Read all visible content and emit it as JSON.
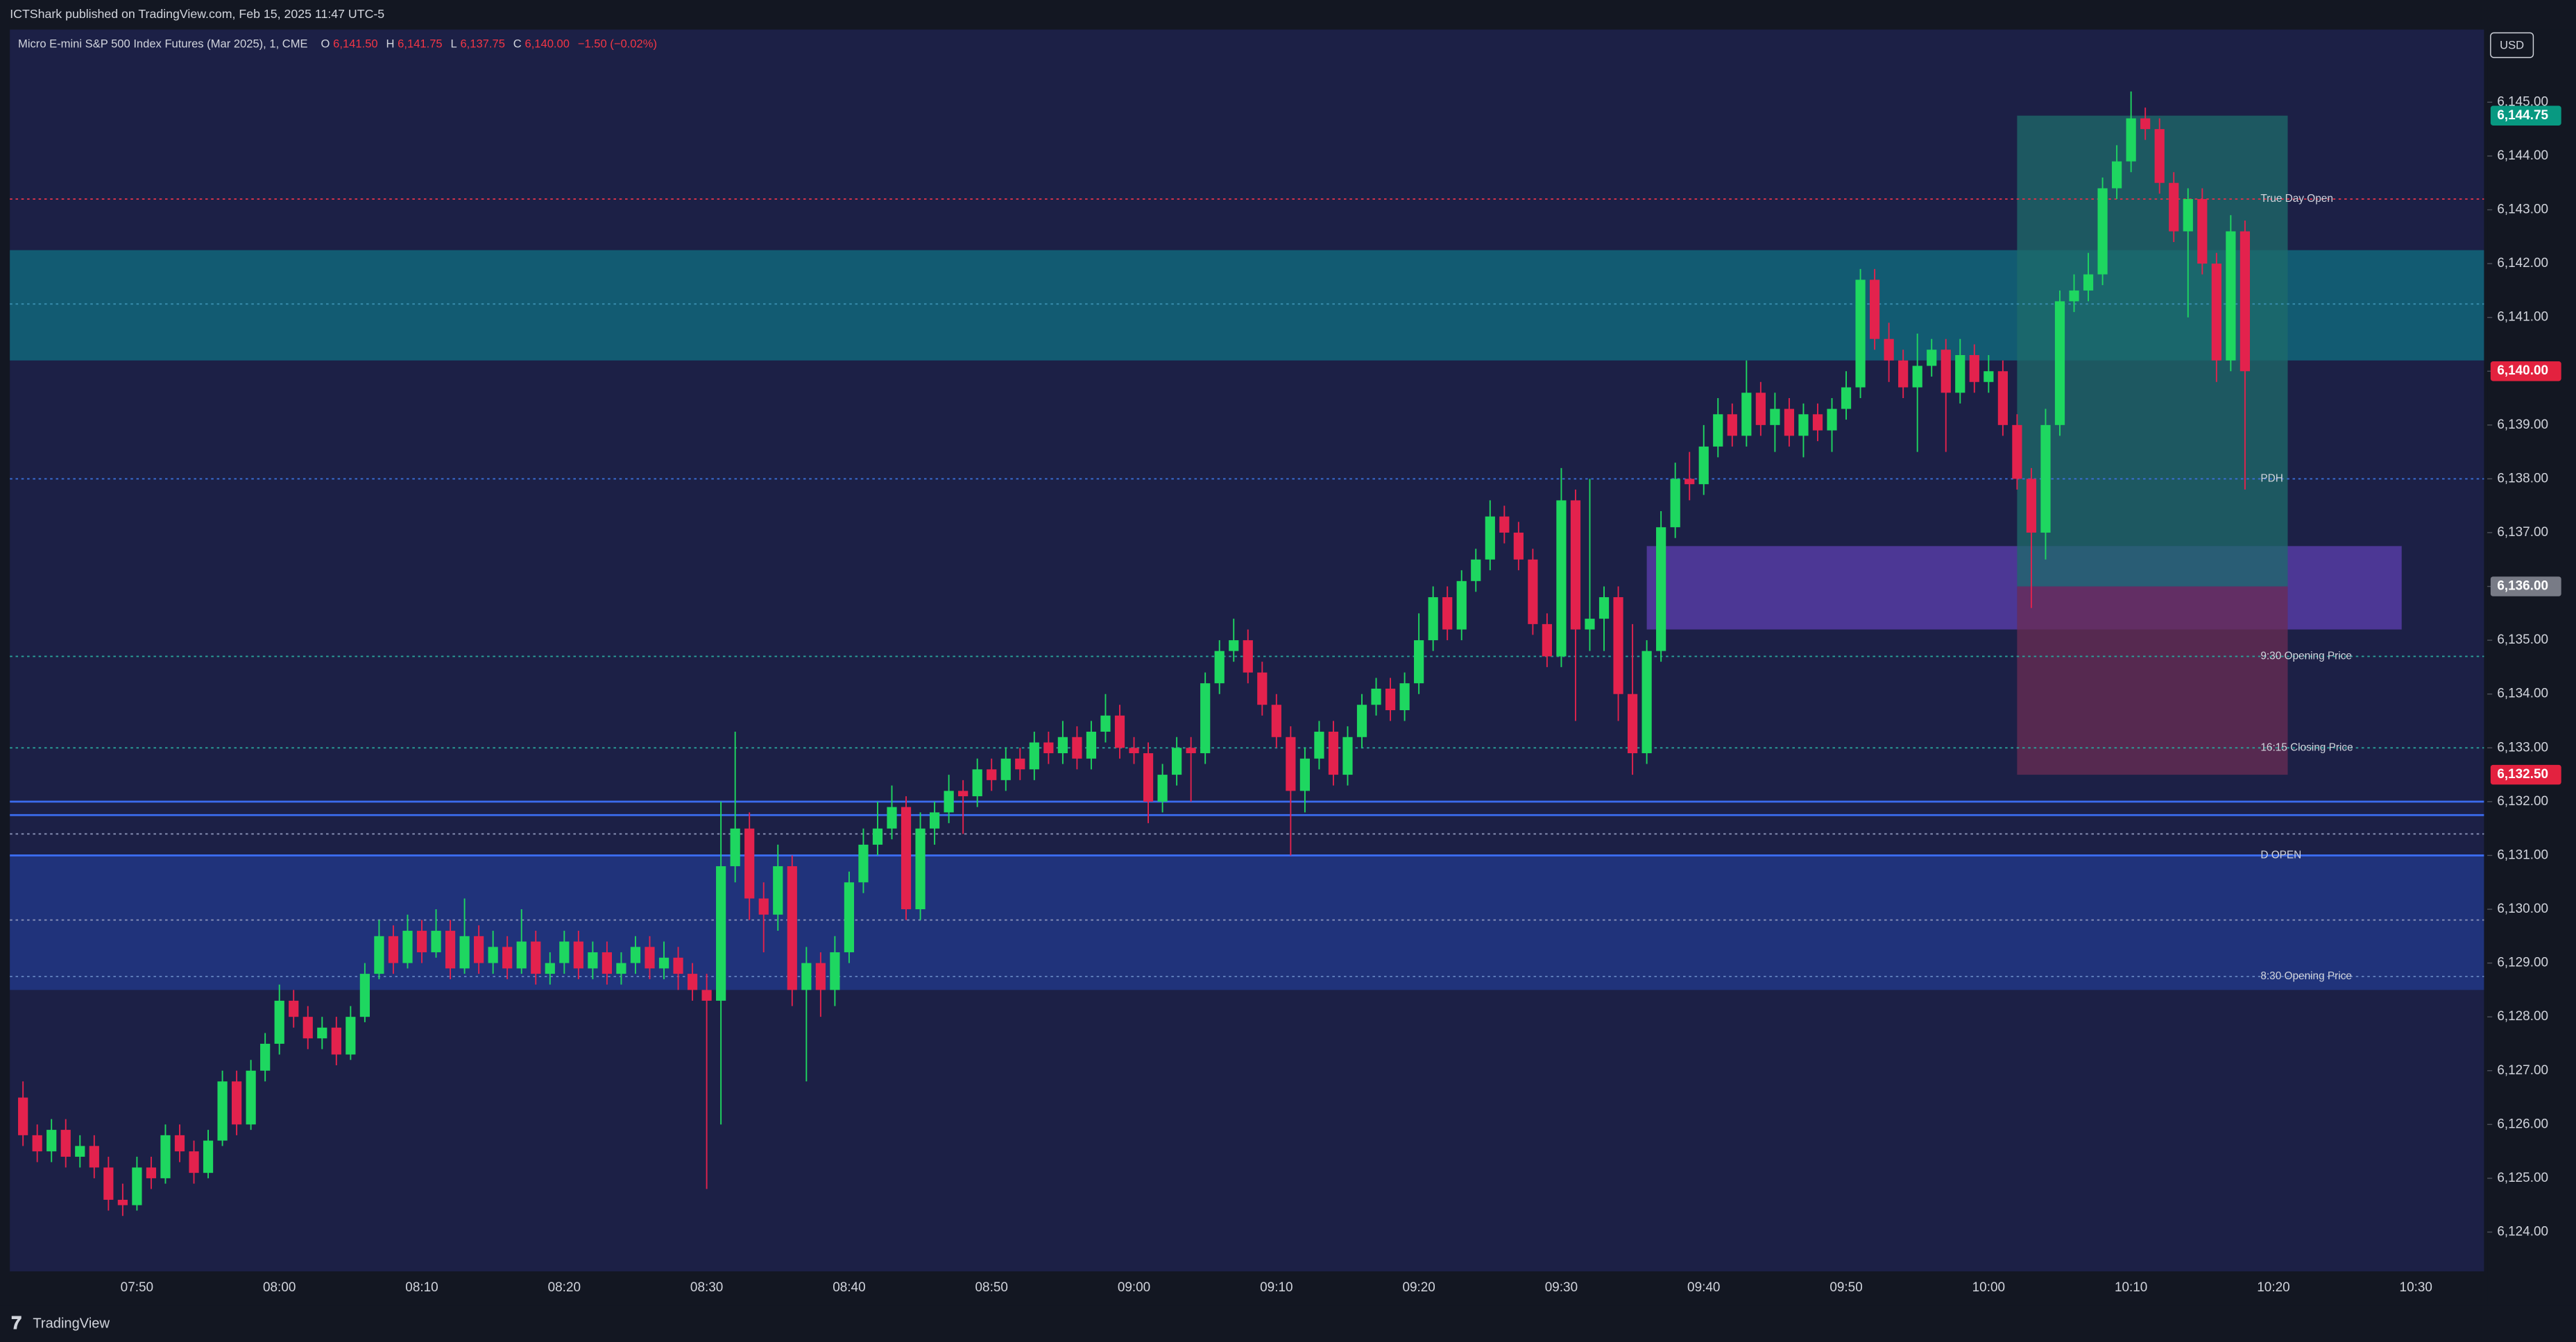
{
  "header": {
    "published": "ICTShark published on TradingView.com, Feb 15, 2025 11:47 UTC-5",
    "symbol": "Micro E-mini S&P 500 Index Futures (Mar 2025), 1, CME",
    "ohlc": [
      {
        "label": "O",
        "value": "6,141.50"
      },
      {
        "label": "H",
        "value": "6,141.75"
      },
      {
        "label": "L",
        "value": "6,137.75"
      },
      {
        "label": "C",
        "value": "6,140.00"
      }
    ],
    "change": "−1.50 (−0.02%)"
  },
  "currency": "USD",
  "brand": "TradingView",
  "chart_data": {
    "type": "candlestick",
    "up_color": "#1ed760",
    "down_color": "#e3224d",
    "categories": [
      null,
      null,
      null,
      null,
      null,
      null,
      null,
      null,
      "07:50",
      null,
      null,
      null,
      null,
      null,
      null,
      null,
      null,
      null,
      "08:00",
      null,
      null,
      null,
      null,
      null,
      null,
      null,
      null,
      null,
      "08:10",
      null,
      null,
      null,
      null,
      null,
      null,
      null,
      null,
      null,
      "08:20",
      null,
      null,
      null,
      null,
      null,
      null,
      null,
      null,
      null,
      "08:30",
      null,
      null,
      null,
      null,
      null,
      null,
      null,
      null,
      null,
      "08:40",
      null,
      null,
      null,
      null,
      null,
      null,
      null,
      null,
      null,
      "08:50",
      null,
      null,
      null,
      null,
      null,
      null,
      null,
      null,
      null,
      "09:00",
      null,
      null,
      null,
      null,
      null,
      null,
      null,
      null,
      null,
      "09:10",
      null,
      null,
      null,
      null,
      null,
      null,
      null,
      null,
      null,
      "09:20",
      null,
      null,
      null,
      null,
      null,
      null,
      null,
      null,
      null,
      "09:30",
      null,
      null,
      null,
      null,
      null,
      null,
      null,
      null,
      null,
      "09:40",
      null,
      null,
      null,
      null,
      null,
      null,
      null,
      null,
      null,
      "09:50",
      null,
      null,
      null,
      null,
      null,
      null,
      null,
      null,
      null,
      "10:00",
      null,
      null,
      null,
      null,
      null,
      null,
      null,
      null,
      null,
      "10:10",
      null,
      null,
      null,
      null,
      null,
      null,
      null,
      null,
      null,
      "10:20",
      null,
      null,
      null,
      null,
      null,
      null,
      null,
      null,
      null,
      "10:30"
    ],
    "candles": [
      [
        6126.5,
        6126.8,
        6125.6,
        6125.8
      ],
      [
        6125.8,
        6126.0,
        6125.3,
        6125.5
      ],
      [
        6125.5,
        6126.1,
        6125.3,
        6125.9
      ],
      [
        6125.9,
        6126.1,
        6125.2,
        6125.4
      ],
      [
        6125.4,
        6125.8,
        6125.2,
        6125.6
      ],
      [
        6125.6,
        6125.8,
        6125.0,
        6125.2
      ],
      [
        6125.2,
        6125.4,
        6124.4,
        6124.6
      ],
      [
        6124.6,
        6124.9,
        6124.3,
        6124.5
      ],
      [
        6124.5,
        6125.4,
        6124.4,
        6125.2
      ],
      [
        6125.2,
        6125.4,
        6124.8,
        6125.0
      ],
      [
        6125.0,
        6126.0,
        6124.9,
        6125.8
      ],
      [
        6125.8,
        6126.0,
        6125.3,
        6125.5
      ],
      [
        6125.5,
        6125.7,
        6124.9,
        6125.1
      ],
      [
        6125.1,
        6125.9,
        6125.0,
        6125.7
      ],
      [
        6125.7,
        6127.0,
        6125.6,
        6126.8
      ],
      [
        6126.8,
        6127.0,
        6125.8,
        6126.0
      ],
      [
        6126.0,
        6127.2,
        6125.9,
        6127.0
      ],
      [
        6127.0,
        6127.7,
        6126.8,
        6127.5
      ],
      [
        6127.5,
        6128.6,
        6127.3,
        6128.3
      ],
      [
        6128.3,
        6128.5,
        6127.8,
        6128.0
      ],
      [
        6128.0,
        6128.2,
        6127.4,
        6127.6
      ],
      [
        6127.6,
        6128.0,
        6127.4,
        6127.8
      ],
      [
        6127.8,
        6128.0,
        6127.1,
        6127.3
      ],
      [
        6127.3,
        6128.2,
        6127.2,
        6128.0
      ],
      [
        6128.0,
        6129.0,
        6127.9,
        6128.8
      ],
      [
        6128.8,
        6129.8,
        6128.7,
        6129.5
      ],
      [
        6129.5,
        6129.7,
        6128.8,
        6129.0
      ],
      [
        6129.0,
        6129.9,
        6128.9,
        6129.6
      ],
      [
        6129.6,
        6129.8,
        6129.0,
        6129.2
      ],
      [
        6129.2,
        6130.0,
        6129.1,
        6129.6
      ],
      [
        6129.6,
        6129.8,
        6128.7,
        6128.9
      ],
      [
        6128.9,
        6130.2,
        6128.8,
        6129.5
      ],
      [
        6129.5,
        6129.7,
        6128.8,
        6129.0
      ],
      [
        6129.0,
        6129.6,
        6128.8,
        6129.3
      ],
      [
        6129.3,
        6129.5,
        6128.7,
        6128.9
      ],
      [
        6128.9,
        6130.0,
        6128.8,
        6129.4
      ],
      [
        6129.4,
        6129.6,
        6128.6,
        6128.8
      ],
      [
        6128.8,
        6129.2,
        6128.6,
        6129.0
      ],
      [
        6129.0,
        6129.6,
        6128.8,
        6129.4
      ],
      [
        6129.4,
        6129.6,
        6128.7,
        6128.9
      ],
      [
        6128.9,
        6129.4,
        6128.7,
        6129.2
      ],
      [
        6129.2,
        6129.4,
        6128.6,
        6128.8
      ],
      [
        6128.8,
        6129.2,
        6128.6,
        6129.0
      ],
      [
        6129.0,
        6129.5,
        6128.8,
        6129.3
      ],
      [
        6129.3,
        6129.5,
        6128.7,
        6128.9
      ],
      [
        6128.9,
        6129.4,
        6128.7,
        6129.1
      ],
      [
        6129.1,
        6129.3,
        6128.5,
        6128.8
      ],
      [
        6128.8,
        6129.0,
        6128.3,
        6128.5
      ],
      [
        6128.5,
        6128.8,
        6124.8,
        6128.3
      ],
      [
        6128.3,
        6132.0,
        6126.0,
        6130.8
      ],
      [
        6130.8,
        6133.3,
        6130.5,
        6131.5
      ],
      [
        6131.5,
        6131.8,
        6129.8,
        6130.2
      ],
      [
        6130.2,
        6130.5,
        6129.2,
        6129.9
      ],
      [
        6129.9,
        6131.2,
        6129.6,
        6130.8
      ],
      [
        6130.8,
        6131.0,
        6128.2,
        6128.5
      ],
      [
        6128.5,
        6129.3,
        6126.8,
        6129.0
      ],
      [
        6129.0,
        6129.2,
        6128.0,
        6128.5
      ],
      [
        6128.5,
        6129.5,
        6128.2,
        6129.2
      ],
      [
        6129.2,
        6130.7,
        6129.0,
        6130.5
      ],
      [
        6130.5,
        6131.5,
        6130.3,
        6131.2
      ],
      [
        6131.2,
        6132.0,
        6131.0,
        6131.5
      ],
      [
        6131.5,
        6132.3,
        6131.3,
        6131.9
      ],
      [
        6131.9,
        6132.1,
        6129.8,
        6130.0
      ],
      [
        6130.0,
        6131.8,
        6129.8,
        6131.5
      ],
      [
        6131.5,
        6132.0,
        6131.2,
        6131.8
      ],
      [
        6131.8,
        6132.5,
        6131.6,
        6132.2
      ],
      [
        6132.2,
        6132.4,
        6131.4,
        6132.1
      ],
      [
        6132.1,
        6132.8,
        6131.9,
        6132.6
      ],
      [
        6132.6,
        6132.8,
        6132.2,
        6132.4
      ],
      [
        6132.4,
        6133.0,
        6132.2,
        6132.8
      ],
      [
        6132.8,
        6133.0,
        6132.4,
        6132.6
      ],
      [
        6132.6,
        6133.3,
        6132.4,
        6133.1
      ],
      [
        6133.1,
        6133.3,
        6132.7,
        6132.9
      ],
      [
        6132.9,
        6133.5,
        6132.7,
        6133.2
      ],
      [
        6133.2,
        6133.4,
        6132.6,
        6132.8
      ],
      [
        6132.8,
        6133.5,
        6132.6,
        6133.3
      ],
      [
        6133.3,
        6134.0,
        6133.1,
        6133.6
      ],
      [
        6133.6,
        6133.8,
        6132.8,
        6133.0
      ],
      [
        6133.0,
        6133.2,
        6132.7,
        6132.9
      ],
      [
        6132.9,
        6133.1,
        6131.6,
        6132.0
      ],
      [
        6132.0,
        6132.7,
        6131.8,
        6132.5
      ],
      [
        6132.5,
        6133.2,
        6132.3,
        6133.0
      ],
      [
        6133.0,
        6133.2,
        6132.0,
        6132.9
      ],
      [
        6132.9,
        6134.4,
        6132.7,
        6134.2
      ],
      [
        6134.2,
        6135.0,
        6134.0,
        6134.8
      ],
      [
        6134.8,
        6135.4,
        6134.6,
        6135.0
      ],
      [
        6135.0,
        6135.2,
        6134.2,
        6134.4
      ],
      [
        6134.4,
        6134.6,
        6133.6,
        6133.8
      ],
      [
        6133.8,
        6134.0,
        6133.0,
        6133.2
      ],
      [
        6133.2,
        6133.4,
        6131.0,
        6132.2
      ],
      [
        6132.2,
        6133.0,
        6131.8,
        6132.8
      ],
      [
        6132.8,
        6133.5,
        6132.6,
        6133.3
      ],
      [
        6133.3,
        6133.5,
        6132.3,
        6132.5
      ],
      [
        6132.5,
        6133.4,
        6132.3,
        6133.2
      ],
      [
        6133.2,
        6134.0,
        6133.0,
        6133.8
      ],
      [
        6133.8,
        6134.3,
        6133.6,
        6134.1
      ],
      [
        6134.1,
        6134.3,
        6133.5,
        6133.7
      ],
      [
        6133.7,
        6134.4,
        6133.5,
        6134.2
      ],
      [
        6134.2,
        6135.5,
        6134.0,
        6135.0
      ],
      [
        6135.0,
        6136.0,
        6134.8,
        6135.8
      ],
      [
        6135.8,
        6136.0,
        6135.0,
        6135.2
      ],
      [
        6135.2,
        6136.3,
        6135.0,
        6136.1
      ],
      [
        6136.1,
        6136.7,
        6135.9,
        6136.5
      ],
      [
        6136.5,
        6137.6,
        6136.3,
        6137.3
      ],
      [
        6137.3,
        6137.5,
        6136.8,
        6137.0
      ],
      [
        6137.0,
        6137.2,
        6136.3,
        6136.5
      ],
      [
        6136.5,
        6136.7,
        6135.1,
        6135.3
      ],
      [
        6135.3,
        6135.5,
        6134.5,
        6134.7
      ],
      [
        6134.7,
        6138.2,
        6134.5,
        6137.6
      ],
      [
        6137.6,
        6137.8,
        6133.5,
        6135.2
      ],
      [
        6135.2,
        6138.0,
        6134.8,
        6135.4
      ],
      [
        6135.4,
        6136.0,
        6134.8,
        6135.8
      ],
      [
        6135.8,
        6136.0,
        6133.5,
        6134.0
      ],
      [
        6134.0,
        6135.3,
        6132.5,
        6132.9
      ],
      [
        6132.9,
        6135.0,
        6132.7,
        6134.8
      ],
      [
        6134.8,
        6137.4,
        6134.6,
        6137.1
      ],
      [
        6137.1,
        6138.3,
        6136.9,
        6138.0
      ],
      [
        6138.0,
        6138.5,
        6137.6,
        6137.9
      ],
      [
        6137.9,
        6139.0,
        6137.7,
        6138.6
      ],
      [
        6138.6,
        6139.5,
        6138.4,
        6139.2
      ],
      [
        6139.2,
        6139.4,
        6138.6,
        6138.8
      ],
      [
        6138.8,
        6140.2,
        6138.6,
        6139.6
      ],
      [
        6139.6,
        6139.8,
        6138.8,
        6139.0
      ],
      [
        6139.0,
        6139.6,
        6138.5,
        6139.3
      ],
      [
        6139.3,
        6139.5,
        6138.6,
        6138.8
      ],
      [
        6138.8,
        6139.4,
        6138.4,
        6139.2
      ],
      [
        6139.2,
        6139.4,
        6138.7,
        6138.9
      ],
      [
        6138.9,
        6139.5,
        6138.5,
        6139.3
      ],
      [
        6139.3,
        6140.0,
        6139.1,
        6139.7
      ],
      [
        6139.7,
        6141.9,
        6139.5,
        6141.7
      ],
      [
        6141.7,
        6141.9,
        6140.4,
        6140.6
      ],
      [
        6140.6,
        6140.9,
        6139.8,
        6140.2
      ],
      [
        6140.2,
        6140.4,
        6139.5,
        6139.7
      ],
      [
        6139.7,
        6140.7,
        6138.5,
        6140.1
      ],
      [
        6140.1,
        6140.6,
        6139.9,
        6140.4
      ],
      [
        6140.4,
        6140.6,
        6138.5,
        6139.6
      ],
      [
        6139.6,
        6140.6,
        6139.4,
        6140.3
      ],
      [
        6140.3,
        6140.5,
        6139.6,
        6139.8
      ],
      [
        6139.8,
        6140.3,
        6139.6,
        6140.0
      ],
      [
        6140.0,
        6140.2,
        6138.8,
        6139.0
      ],
      [
        6139.0,
        6139.2,
        6137.8,
        6138.0
      ],
      [
        6138.0,
        6138.2,
        6135.6,
        6137.0
      ],
      [
        6137.0,
        6139.3,
        6136.5,
        6139.0
      ],
      [
        6139.0,
        6141.5,
        6138.8,
        6141.3
      ],
      [
        6141.3,
        6141.8,
        6141.1,
        6141.5
      ],
      [
        6141.5,
        6142.2,
        6141.3,
        6141.8
      ],
      [
        6141.8,
        6143.6,
        6141.6,
        6143.4
      ],
      [
        6143.4,
        6144.2,
        6143.2,
        6143.9
      ],
      [
        6143.9,
        6145.2,
        6143.7,
        6144.7
      ],
      [
        6144.7,
        6144.9,
        6144.3,
        6144.5
      ],
      [
        6144.5,
        6144.7,
        6143.3,
        6143.5
      ],
      [
        6143.5,
        6143.7,
        6142.4,
        6142.6
      ],
      [
        6142.6,
        6143.4,
        6141.0,
        6143.2
      ],
      [
        6143.2,
        6143.4,
        6141.8,
        6142.0
      ],
      [
        6142.0,
        6142.2,
        6139.8,
        6140.2
      ],
      [
        6140.2,
        6142.9,
        6140.0,
        6142.6
      ],
      [
        6142.6,
        6142.8,
        6137.8,
        6140.0
      ],
      null,
      null,
      null,
      null,
      null,
      null,
      null,
      null,
      null,
      null,
      null,
      null
    ],
    "ylim": [
      6123.3,
      6146.35
    ],
    "yticks": [
      {
        "value": 6124,
        "label": "6,124.00"
      },
      {
        "value": 6125,
        "label": "6,125.00"
      },
      {
        "value": 6126,
        "label": "6,126.00"
      },
      {
        "value": 6127,
        "label": "6,127.00"
      },
      {
        "value": 6128,
        "label": "6,128.00"
      },
      {
        "value": 6129,
        "label": "6,129.00"
      },
      {
        "value": 6130,
        "label": "6,130.00"
      },
      {
        "value": 6131,
        "label": "6,131.00"
      },
      {
        "value": 6132,
        "label": "6,132.00"
      },
      {
        "value": 6133,
        "label": "6,133.00"
      },
      {
        "value": 6134,
        "label": "6,134.00"
      },
      {
        "value": 6135,
        "label": "6,135.00"
      },
      {
        "value": 6136,
        "label": "6,136.00"
      },
      {
        "value": 6137,
        "label": "6,137.00"
      },
      {
        "value": 6138,
        "label": "6,138.00"
      },
      {
        "value": 6139,
        "label": "6,139.00"
      },
      {
        "value": 6140,
        "label": "6,140.00"
      },
      {
        "value": 6141,
        "label": "6,141.00"
      },
      {
        "value": 6142,
        "label": "6,142.00"
      },
      {
        "value": 6143,
        "label": "6,143.00"
      },
      {
        "value": 6144,
        "label": "6,144.00"
      },
      {
        "value": 6145,
        "label": "6,145.00"
      }
    ],
    "zones": [
      {
        "range": [
          6140.2,
          6142.25
        ],
        "color": "#0f6f82"
      },
      {
        "range": [
          6128.5,
          6131.0
        ],
        "color": "#213a8e"
      },
      {
        "range": [
          6135.2,
          6136.75
        ],
        "x": [
          "09:36",
          "10:29"
        ],
        "color": "#5c3fb0"
      },
      {
        "range": [
          6136.0,
          6144.75
        ],
        "x": [
          "10:02",
          "10:21"
        ],
        "color": "#1d6b6b"
      },
      {
        "range": [
          6132.5,
          6136.0
        ],
        "x": [
          "10:02",
          "10:21"
        ],
        "color": "#6a2c54"
      }
    ],
    "levels": [
      {
        "name": "True Day Open",
        "value": 6143.2,
        "color": "#d2334a",
        "dash": true
      },
      {
        "name": "PDH",
        "value": 6138.0,
        "color": "#3a6fd8",
        "dash": true
      },
      {
        "name": "9:30 Opening Price",
        "value": 6134.7,
        "color": "#2aa39a",
        "dash": true
      },
      {
        "name": "16:15 Closing Price",
        "value": 6133.0,
        "color": "#2aa39a",
        "dash": true
      },
      {
        "name": "D OPEN",
        "value": 6131.0,
        "color": "#3b6cf0",
        "dash": false
      },
      {
        "name": "8:30 Opening Price",
        "value": 6128.75,
        "color": "#5b7bb8",
        "dash": true
      },
      {
        "value": 6132.0,
        "color": "#3b6cf0",
        "dash": false
      },
      {
        "value": 6131.75,
        "color": "#3b6cf0",
        "dash": false
      },
      {
        "value": 6131.4,
        "color": "#8a93b8",
        "dash": true
      },
      {
        "value": 6129.8,
        "color": "#8a93b8",
        "dash": true
      },
      {
        "value": 6141.25,
        "color": "#3a8fb0",
        "dash": true
      }
    ],
    "price_badges": [
      {
        "value": 6144.75,
        "label": "6,144.75",
        "color": "#089981"
      },
      {
        "value": 6140.0,
        "label": "6,140.00",
        "color": "#e3223f"
      },
      {
        "value": 6136.0,
        "label": "6,136.00",
        "color": "#787b86"
      },
      {
        "value": 6132.5,
        "label": "6,132.50",
        "color": "#e3223f"
      }
    ]
  }
}
